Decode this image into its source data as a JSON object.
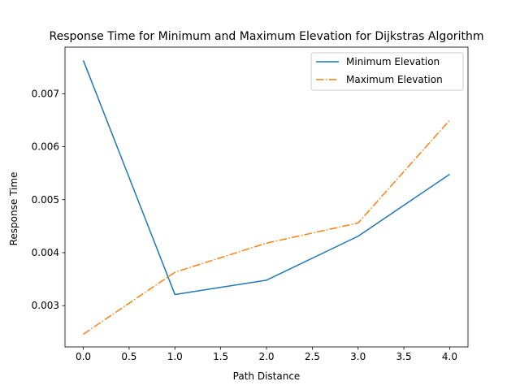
{
  "chart_data": {
    "type": "line",
    "title": "Response Time for Minimum and Maximum Elevation for Dijkstras Algorithm",
    "xlabel": "Path Distance",
    "ylabel": "Response Time",
    "x": [
      0,
      1,
      2,
      3,
      4
    ],
    "xlim": [
      -0.2,
      4.2
    ],
    "ylim": [
      0.00222,
      0.00788
    ],
    "xticks": [
      0.0,
      0.5,
      1.0,
      1.5,
      2.0,
      2.5,
      3.0,
      3.5,
      4.0
    ],
    "xtick_labels": [
      "0.0",
      "0.5",
      "1.0",
      "1.5",
      "2.0",
      "2.5",
      "3.0",
      "3.5",
      "4.0"
    ],
    "yticks": [
      0.003,
      0.004,
      0.005,
      0.006,
      0.007
    ],
    "ytick_labels": [
      "0.003",
      "0.004",
      "0.005",
      "0.006",
      "0.007"
    ],
    "grid": false,
    "legend_position": "upper right",
    "series": [
      {
        "name": "Minimum Elevation",
        "values": [
          0.00763,
          0.00321,
          0.00348,
          0.00431,
          0.00548
        ],
        "color": "#1f77b4",
        "linestyle": "solid"
      },
      {
        "name": "Maximum Elevation",
        "values": [
          0.00246,
          0.00363,
          0.00418,
          0.00456,
          0.0065
        ],
        "color": "#ff7f0e",
        "linestyle": "dashdot"
      }
    ]
  }
}
